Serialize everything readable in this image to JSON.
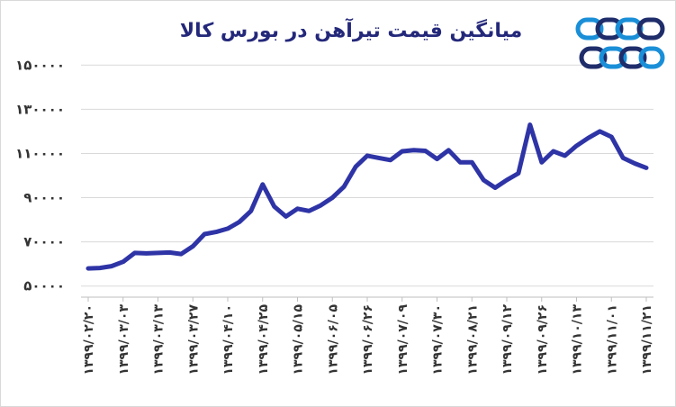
{
  "chart_data": {
    "type": "line",
    "title": "میانگین قیمت تیرآهن در بورس کالا",
    "xlabel": "",
    "ylabel": "",
    "ylim": [
      45000,
      155000
    ],
    "y_ticks": [
      "۵۰۰۰۰",
      "۷۰۰۰۰",
      "۹۰۰۰۰",
      "۱۱۰۰۰۰",
      "۱۳۰۰۰۰",
      "۱۵۰۰۰۰"
    ],
    "y_tick_values": [
      50000,
      70000,
      90000,
      110000,
      130000,
      150000
    ],
    "x_tick_labels": [
      "۱۳۹۹/۰۲/۲۰",
      "۱۳۹۹/۰۳/۰۳",
      "۱۳۹۹/۰۳/۱۳",
      "۱۳۹۹/۰۳/۲۷",
      "۱۳۹۹/۰۴/۱۰",
      "۱۳۹۹/۰۴/۲۵",
      "۱۳۹۹/۰۵/۱۵",
      "۱۳۹۹/۰۶/۰۵",
      "۱۳۹۹/۰۶/۲۶",
      "۱۳۹۹/۰۷/۰۹",
      "۱۳۹۹/۰۷/۳۰",
      "۱۳۹۹/۰۸/۲۱",
      "۱۳۹۹/۰۹/۱۲",
      "۱۳۹۹/۰۹/۲۶",
      "۱۳۹۹/۱۰/۱۳",
      "۱۳۹۹/۱۱/۰۱",
      "۱۳۹۹/۱۱/۲۱"
    ],
    "grid": true,
    "series": [
      {
        "color": "#2e34a6",
        "values": [
          58000,
          58200,
          59000,
          61000,
          65000,
          64800,
          65000,
          65200,
          64500,
          68000,
          73500,
          74500,
          76000,
          79000,
          84000,
          96000,
          86000,
          81500,
          85000,
          84000,
          86500,
          90000,
          95000,
          104000,
          109000,
          108000,
          107000,
          111000,
          111500,
          111200,
          107500,
          111500,
          106000,
          106000,
          98000,
          94500,
          98000,
          101000,
          123000,
          106000,
          111000,
          109000,
          113500,
          117000,
          120000,
          117500,
          108000,
          105500,
          103500
        ]
      }
    ]
  },
  "logo": {
    "colors": [
      "#1a8fd8",
      "#1f2d6b"
    ]
  }
}
